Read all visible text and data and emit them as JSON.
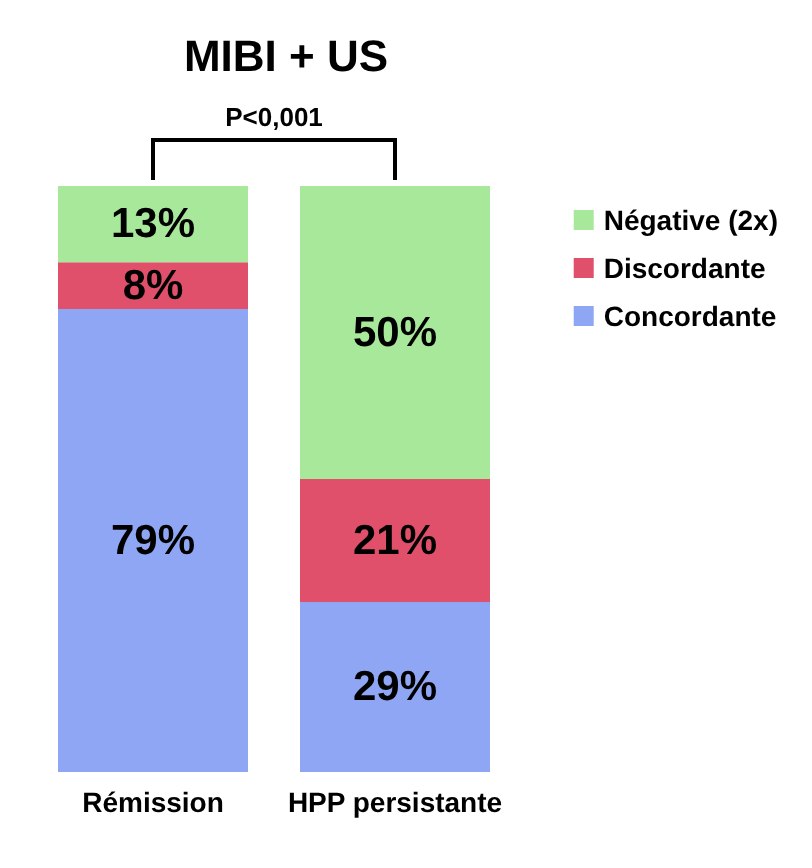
{
  "chart_data": {
    "type": "bar",
    "title": "MIBI + US",
    "categories": [
      "Rémission",
      "HPP persistante"
    ],
    "stacked": true,
    "legend": "top right",
    "annotations": [
      "P<0,001"
    ],
    "series": [
      {
        "name": "Concordante",
        "color": "#8fa6f5",
        "values": [
          79,
          29
        ],
        "value_labels": [
          "79%",
          "29%"
        ]
      },
      {
        "name": "Discordante",
        "color": "#e0506a",
        "values": [
          8,
          21
        ],
        "value_labels": [
          "8%",
          "21%"
        ]
      },
      {
        "name": "Négative (2x)",
        "color": "#a8e89a",
        "values": [
          13,
          50
        ],
        "value_labels": [
          "13%",
          "50%"
        ]
      }
    ]
  }
}
